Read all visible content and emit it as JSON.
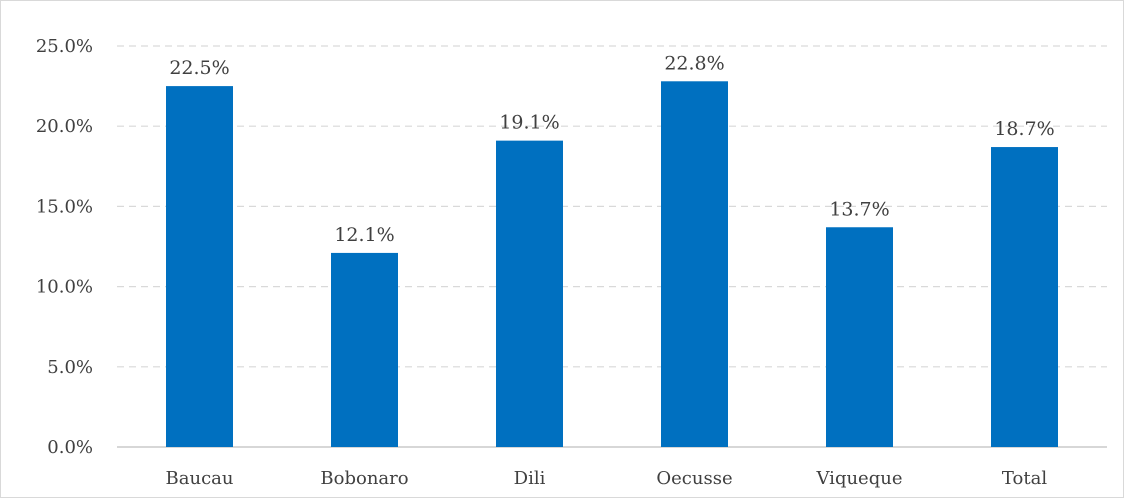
{
  "chart_data": {
    "type": "bar",
    "categories": [
      "Baucau",
      "Bobonaro",
      "Dili",
      "Oecusse",
      "Viqueque",
      "Total"
    ],
    "values": [
      22.5,
      12.1,
      19.1,
      22.8,
      13.7,
      18.7
    ],
    "data_labels": [
      "22.5%",
      "12.1%",
      "19.1%",
      "22.8%",
      "13.7%",
      "18.7%"
    ],
    "y_ticks": [
      0,
      5,
      10,
      15,
      20,
      25
    ],
    "y_tick_labels": [
      "0.0%",
      "5.0%",
      "10.0%",
      "15.0%",
      "20.0%",
      "25.0%"
    ],
    "ylim": [
      0,
      25
    ],
    "grid": true,
    "legend": "none",
    "title": "",
    "xlabel": "",
    "ylabel": "",
    "colors": {
      "bar": "#0070C0",
      "grid": "#d9d9d9",
      "axis": "#bfbfbf",
      "text": "#404040"
    }
  }
}
